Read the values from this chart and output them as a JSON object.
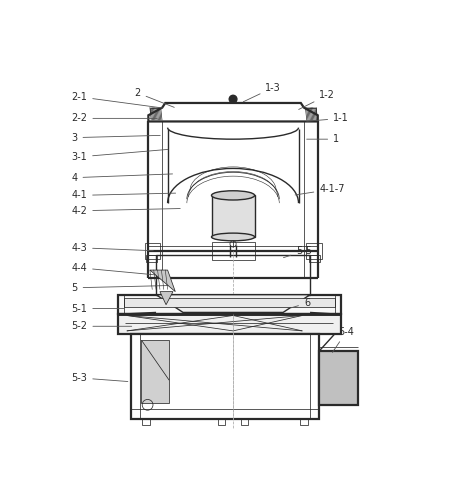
{
  "bg_color": "#ffffff",
  "line_color": "#2a2a2a",
  "label_color": "#2a2a2a",
  "figsize": [
    4.51,
    4.86
  ],
  "dpi": 100,
  "lw_thick": 1.6,
  "lw_main": 1.0,
  "lw_thin": 0.55,
  "label_fs": 7.0,
  "gray_light": "#d4d4d4",
  "gray_med": "#b0b0b0",
  "gray_dark": "#888888"
}
